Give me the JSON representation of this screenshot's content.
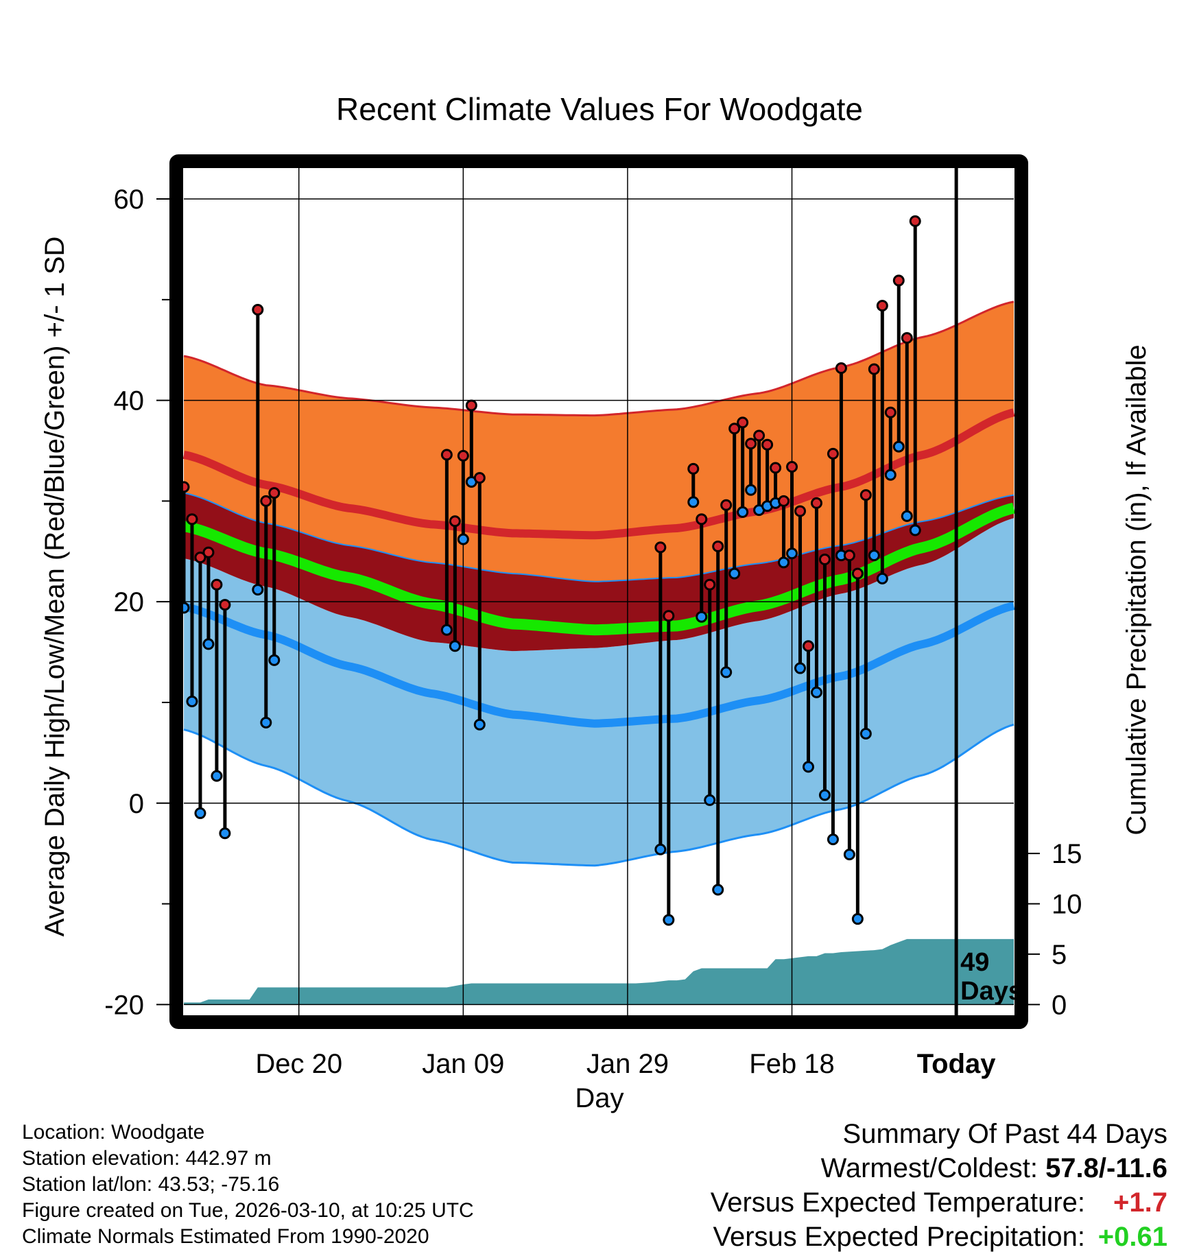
{
  "chart_data": {
    "type": "line",
    "title": "Recent Climate Values For Woodgate",
    "xlabel": "Day",
    "ylabel_left": "Average Daily High/Low/Mean (Red/Blue/Green) +/- 1 SD",
    "ylabel_right": "Cumulative Precipitation (in), If Available",
    "x_unit": "days (0 = Dec 06)",
    "xlim": [
      0,
      101
    ],
    "ylim": [
      -21,
      63
    ],
    "y_ticks": [
      -20,
      0,
      20,
      40,
      60
    ],
    "y_minor_ticks": [
      -10,
      10,
      30,
      50
    ],
    "precip_ticks": [
      0,
      5,
      10,
      15
    ],
    "precip_scale": {
      "precip_at_y_minus20": 0,
      "precip_at_y0": 20
    },
    "x_ticks": [
      {
        "day": 14,
        "label": "Dec 20"
      },
      {
        "day": 34,
        "label": "Jan 09"
      },
      {
        "day": 54,
        "label": "Jan 29"
      },
      {
        "day": 74,
        "label": "Feb 18"
      },
      {
        "day": 94,
        "label": "Today"
      }
    ],
    "today_day": 94,
    "today_label": [
      "49",
      "Days"
    ],
    "grid": true,
    "normals": {
      "days": [
        0,
        10,
        20,
        30,
        40,
        50,
        60,
        70,
        80,
        90,
        101
      ],
      "high_plus_sd": [
        44.4,
        41.5,
        40.2,
        39.3,
        38.6,
        38.5,
        39.1,
        40.7,
        43.3,
        46.3,
        49.8
      ],
      "high_mean": [
        34.6,
        31.6,
        29.3,
        27.7,
        26.8,
        26.6,
        27.3,
        29.0,
        31.4,
        34.6,
        38.8
      ],
      "high_minus_sd": [
        30.8,
        27.8,
        25.6,
        23.9,
        22.8,
        22.0,
        22.4,
        23.8,
        25.6,
        28.0,
        30.6
      ],
      "mean": [
        27.5,
        24.8,
        22.4,
        19.8,
        17.8,
        17.2,
        17.6,
        19.6,
        22.2,
        25.4,
        29.3
      ],
      "low_plus_sd": [
        24.3,
        21.5,
        18.5,
        16.0,
        15.1,
        15.4,
        16.2,
        18.1,
        20.8,
        23.7,
        28.3
      ],
      "low_mean": [
        19.5,
        16.7,
        13.6,
        10.9,
        8.8,
        7.9,
        8.4,
        10.2,
        12.6,
        15.8,
        19.6
      ],
      "low_minus_sd": [
        7.3,
        3.7,
        0.2,
        -3.6,
        -5.9,
        -6.2,
        -4.8,
        -3.1,
        -0.6,
        2.8,
        7.8
      ]
    },
    "observations": [
      {
        "day": 0,
        "high": 31.4,
        "low": 19.4
      },
      {
        "day": 1,
        "high": 28.2,
        "low": 10.1
      },
      {
        "day": 2,
        "high": 24.4,
        "low": -1.0
      },
      {
        "day": 3,
        "high": 24.9,
        "low": 15.8
      },
      {
        "day": 4,
        "high": 21.7,
        "low": 2.7
      },
      {
        "day": 5,
        "high": 19.7,
        "low": -3.0
      },
      {
        "day": 9,
        "high": 49.0,
        "low": 21.2
      },
      {
        "day": 10,
        "high": 30.0,
        "low": 8.0
      },
      {
        "day": 11,
        "high": 30.8,
        "low": 14.2
      },
      {
        "day": 32,
        "high": 34.6,
        "low": 17.2
      },
      {
        "day": 33,
        "high": 28.0,
        "low": 15.6
      },
      {
        "day": 34,
        "high": 34.5,
        "low": 26.2
      },
      {
        "day": 35,
        "high": 39.5,
        "low": 31.9
      },
      {
        "day": 36,
        "high": 32.3,
        "low": 7.8
      },
      {
        "day": 58,
        "high": 25.4,
        "low": -4.6
      },
      {
        "day": 59,
        "high": 18.6,
        "low": -11.6
      },
      {
        "day": 62,
        "high": 33.2,
        "low": 29.9
      },
      {
        "day": 63,
        "high": 28.2,
        "low": 18.5
      },
      {
        "day": 64,
        "high": 21.7,
        "low": 0.3
      },
      {
        "day": 65,
        "high": 25.5,
        "low": -8.6
      },
      {
        "day": 66,
        "high": 29.6,
        "low": 13.0
      },
      {
        "day": 67,
        "high": 37.2,
        "low": 22.8
      },
      {
        "day": 68,
        "high": 37.8,
        "low": 28.9
      },
      {
        "day": 69,
        "high": 35.7,
        "low": 31.1
      },
      {
        "day": 70,
        "high": 36.5,
        "low": 29.1
      },
      {
        "day": 71,
        "high": 35.6,
        "low": 29.5
      },
      {
        "day": 72,
        "high": 33.3,
        "low": 29.8
      },
      {
        "day": 73,
        "high": 30.0,
        "low": 23.9
      },
      {
        "day": 74,
        "high": 33.4,
        "low": 24.8
      },
      {
        "day": 75,
        "high": 29.0,
        "low": 13.4
      },
      {
        "day": 76,
        "high": 15.6,
        "low": 3.6
      },
      {
        "day": 77,
        "high": 29.8,
        "low": 11.0
      },
      {
        "day": 78,
        "high": 24.2,
        "low": 0.8
      },
      {
        "day": 79,
        "high": 34.7,
        "low": -3.6
      },
      {
        "day": 80,
        "high": 43.2,
        "low": 24.6
      },
      {
        "day": 81,
        "high": 24.6,
        "low": -5.1
      },
      {
        "day": 82,
        "high": 22.8,
        "low": -11.5
      },
      {
        "day": 83,
        "high": 30.6,
        "low": 6.9
      },
      {
        "day": 84,
        "high": 43.1,
        "low": 24.6
      },
      {
        "day": 85,
        "high": 49.4,
        "low": 22.3
      },
      {
        "day": 86,
        "high": 38.8,
        "low": 32.6
      },
      {
        "day": 87,
        "high": 51.9,
        "low": 35.4
      },
      {
        "day": 88,
        "high": 46.2,
        "low": 28.5
      },
      {
        "day": 89,
        "high": 57.8,
        "low": 27.1
      }
    ],
    "precip_cumulative": {
      "days": [
        0,
        2,
        3,
        8,
        9,
        32,
        34,
        35,
        36,
        55,
        57,
        59,
        60,
        61,
        62,
        63,
        64,
        71,
        72,
        73,
        76,
        77,
        78,
        79,
        80,
        84,
        85,
        86,
        87,
        88,
        90,
        101
      ],
      "values": [
        0.2,
        0.2,
        0.5,
        0.5,
        1.7,
        1.7,
        2.0,
        2.1,
        2.1,
        2.1,
        2.2,
        2.4,
        2.4,
        2.5,
        3.3,
        3.6,
        3.6,
        3.6,
        4.5,
        4.5,
        4.8,
        4.8,
        5.1,
        5.1,
        5.2,
        5.4,
        5.5,
        5.9,
        6.2,
        6.5,
        6.5,
        6.5
      ]
    },
    "colors": {
      "high_band": "#f47b2e",
      "high_mean_line": "#d2262b",
      "mean_band": "#930f18",
      "mean_line": "#16e800",
      "low_band": "#82c1e7",
      "low_mean_line": "#1e8ff5",
      "precip_fill": "#479aa3",
      "high_dot": "#d2262b",
      "low_dot": "#1e8ff5",
      "positive_temp": "#d2262b",
      "positive_precip": "#22d022"
    }
  },
  "info": {
    "location": "Location: Woodgate",
    "elevation": "Station elevation: 442.97 m",
    "latlon": "Station lat/lon: 43.53; -75.16",
    "created": "Figure created on Tue, 2026-03-10, at 10:25 UTC",
    "normals": "Climate Normals Estimated From 1990-2020"
  },
  "summary": {
    "heading": "Summary Of Past 44 Days",
    "warm_cold_label": "Warmest/Coldest: ",
    "warm_cold_value": "57.8/-11.6",
    "temp_label": "Versus Expected Temperature:",
    "temp_value": "+1.7",
    "precip_label": "Versus Expected Precipitation:",
    "precip_value": "+0.61"
  }
}
